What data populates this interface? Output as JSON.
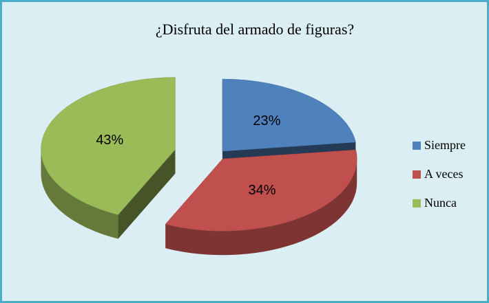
{
  "chart_data": {
    "type": "pie3d",
    "title": "¿Disfruta del armado de figuras?",
    "categories": [
      "Siempre",
      "A veces",
      "Nunca"
    ],
    "values": [
      23,
      34,
      43
    ],
    "value_labels": [
      "23%",
      "34%",
      "43%"
    ],
    "colors": [
      "#4f81bd",
      "#c0504d",
      "#9bbb59"
    ],
    "legend": "right"
  }
}
